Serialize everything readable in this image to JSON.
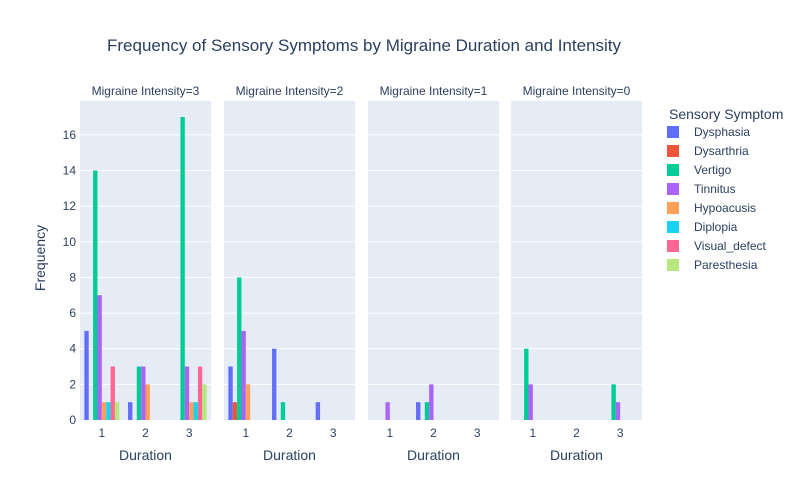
{
  "chart_data": {
    "type": "bar",
    "title": "Frequency of Sensory Symptoms by Migraine Duration and Intensity",
    "ylabel": "Frequency",
    "xlabel": "Duration",
    "ylim": [
      0,
      17.9
    ],
    "y_ticks": [
      0,
      2,
      4,
      6,
      8,
      10,
      12,
      14,
      16
    ],
    "categories": [
      "1",
      "2",
      "3"
    ],
    "legend": {
      "title": "Sensory Symptom",
      "position": "right"
    },
    "series": [
      {
        "name": "Dysphasia",
        "color": "#636efa"
      },
      {
        "name": "Dysarthria",
        "color": "#EF553B"
      },
      {
        "name": "Vertigo",
        "color": "#00cc96"
      },
      {
        "name": "Tinnitus",
        "color": "#ab63fa"
      },
      {
        "name": "Hypoacusis",
        "color": "#FFA15A"
      },
      {
        "name": "Diplopia",
        "color": "#19d3f3"
      },
      {
        "name": "Visual_defect",
        "color": "#FF6692"
      },
      {
        "name": "Paresthesia",
        "color": "#B6E880"
      }
    ],
    "facets": [
      {
        "label": "Migraine Intensity=3",
        "values": [
          [
            5,
            0,
            14,
            7,
            1,
            1,
            3,
            1
          ],
          [
            1,
            0,
            3,
            3,
            2,
            0,
            0,
            0
          ],
          [
            0,
            0,
            17,
            3,
            1,
            1,
            3,
            2
          ]
        ]
      },
      {
        "label": "Migraine Intensity=2",
        "values": [
          [
            3,
            1,
            8,
            5,
            2,
            0,
            0,
            0
          ],
          [
            4,
            0,
            1,
            0,
            0,
            0,
            0,
            0
          ],
          [
            1,
            0,
            0,
            0,
            0,
            0,
            0,
            0
          ]
        ]
      },
      {
        "label": "Migraine Intensity=1",
        "values": [
          [
            0,
            0,
            0,
            1,
            0,
            0,
            0,
            0
          ],
          [
            1,
            0,
            1,
            2,
            0,
            0,
            0,
            0
          ],
          [
            0,
            0,
            0,
            0,
            0,
            0,
            0,
            0
          ]
        ]
      },
      {
        "label": "Migraine Intensity=0",
        "values": [
          [
            0,
            0,
            4,
            2,
            0,
            0,
            0,
            0
          ],
          [
            0,
            0,
            0,
            0,
            0,
            0,
            0,
            0
          ],
          [
            0,
            0,
            2,
            1,
            0,
            0,
            0,
            0
          ]
        ]
      }
    ]
  }
}
